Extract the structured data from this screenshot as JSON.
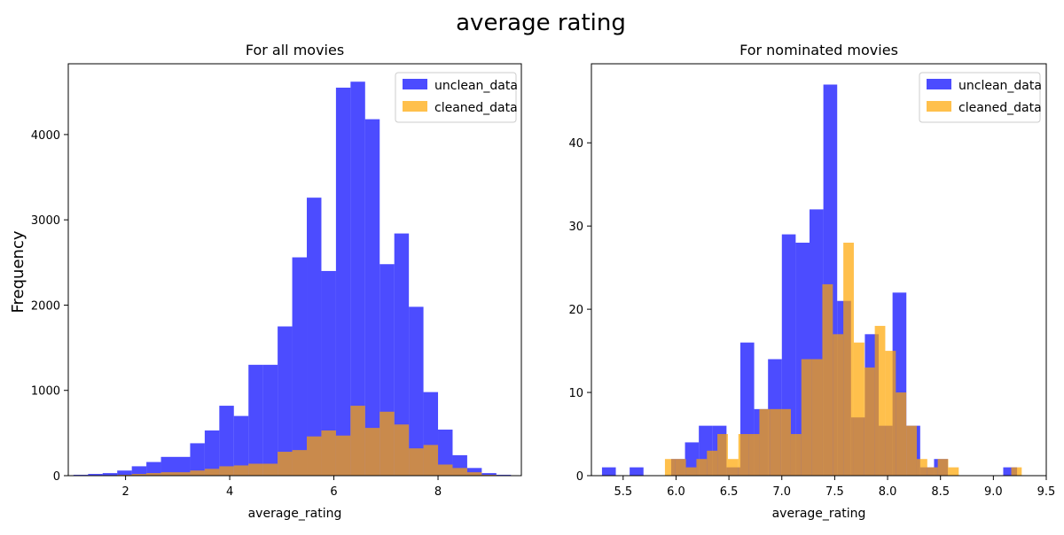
{
  "figure": {
    "suptitle": "average rating",
    "shared_ylabel": "Frequency"
  },
  "chart_data": [
    {
      "type": "histogram",
      "title": "For all movies",
      "xlabel": "average_rating",
      "ylabel": "",
      "xlim": [
        0.9,
        9.6
      ],
      "ylim": [
        0,
        4830
      ],
      "xticks": [
        2,
        4,
        6,
        8
      ],
      "yticks": [
        0,
        1000,
        2000,
        3000,
        4000
      ],
      "legend_position": "upper right",
      "grid": false,
      "series": [
        {
          "name": "unclean_data",
          "color": "#0000ff",
          "opacity": 0.7,
          "bin_edges": [
            1.0,
            1.28,
            1.56,
            1.84,
            2.12,
            2.4,
            2.68,
            2.96,
            3.24,
            3.52,
            3.8,
            4.08,
            4.36,
            4.64,
            4.92,
            5.2,
            5.48,
            5.76,
            6.04,
            6.32,
            6.6,
            6.88,
            7.16,
            7.44,
            7.72,
            8.0,
            8.28,
            8.56,
            8.84,
            9.12,
            9.4
          ],
          "counts": [
            10,
            20,
            30,
            60,
            110,
            160,
            220,
            220,
            380,
            530,
            820,
            700,
            1300,
            1300,
            1750,
            2560,
            3260,
            2400,
            4550,
            4620,
            4180,
            2480,
            2840,
            1980,
            980,
            540,
            240,
            90,
            30,
            10
          ]
        },
        {
          "name": "cleaned_data",
          "color": "#ffa500",
          "opacity": 0.7,
          "bin_edges": [
            1.0,
            1.28,
            1.56,
            1.84,
            2.12,
            2.4,
            2.68,
            2.96,
            3.24,
            3.52,
            3.8,
            4.08,
            4.36,
            4.64,
            4.92,
            5.2,
            5.48,
            5.76,
            6.04,
            6.32,
            6.6,
            6.88,
            7.16,
            7.44,
            7.72,
            8.0,
            8.28,
            8.56,
            8.84,
            9.12,
            9.4
          ],
          "counts": [
            0,
            0,
            0,
            10,
            20,
            30,
            40,
            40,
            60,
            80,
            110,
            120,
            140,
            140,
            280,
            300,
            460,
            530,
            470,
            820,
            560,
            750,
            600,
            320,
            360,
            130,
            90,
            40,
            10,
            0
          ]
        }
      ]
    },
    {
      "type": "histogram",
      "title": "For nominated movies",
      "xlabel": "average_rating",
      "ylabel": "",
      "xlim": [
        5.2,
        9.5
      ],
      "ylim": [
        0,
        49.5
      ],
      "xticks": [
        5.5,
        6.0,
        6.5,
        7.0,
        7.5,
        8.0,
        8.5,
        9.0,
        9.5
      ],
      "yticks": [
        0,
        10,
        20,
        30,
        40
      ],
      "legend_position": "upper right",
      "grid": false,
      "series": [
        {
          "name": "unclean_data",
          "color": "#0000ff",
          "opacity": 0.7,
          "bin_edges": [
            5.3,
            5.4308,
            5.5616,
            5.6924,
            5.8232,
            5.954,
            6.0848,
            6.2156,
            6.3464,
            6.4772,
            6.608,
            6.7388,
            6.8696,
            7.0004,
            7.1312,
            7.262,
            7.3928,
            7.5236,
            7.6544,
            7.7852,
            7.916,
            8.0468,
            8.1776,
            8.3084,
            8.4392,
            8.57,
            8.7008,
            8.8316,
            8.9624,
            9.0932,
            9.224
          ],
          "counts": [
            1,
            0,
            1,
            0,
            0,
            2,
            4,
            6,
            6,
            1,
            16,
            8,
            14,
            29,
            28,
            32,
            47,
            21,
            7,
            17,
            6,
            22,
            6,
            1,
            2,
            0,
            0,
            0,
            0,
            1
          ]
        },
        {
          "name": "cleaned_data",
          "color": "#ffa500",
          "opacity": 0.7,
          "bin_edges": [
            5.3,
            5.3992,
            5.4984,
            5.5976,
            5.6968,
            5.796,
            5.8952,
            5.9944,
            6.0936,
            6.1928,
            6.292,
            6.3912,
            6.4904,
            6.5896,
            6.6888,
            6.788,
            6.8872,
            6.9864,
            7.0856,
            7.1848,
            7.284,
            7.3832,
            7.4824,
            7.5816,
            7.6808,
            7.78,
            7.8792,
            7.978,
            8.0776,
            8.1768,
            8.276,
            8.3752,
            8.4744,
            8.5736,
            8.6728,
            8.772,
            8.8712,
            8.9704,
            9.0696,
            9.1688,
            9.268
          ],
          "counts": [
            0,
            0,
            0,
            0,
            0,
            0,
            2,
            2,
            1,
            2,
            3,
            5,
            2,
            5,
            5,
            8,
            8,
            8,
            5,
            14,
            14,
            23,
            17,
            28,
            16,
            13,
            18,
            15,
            10,
            6,
            2,
            1,
            2,
            1,
            0,
            0,
            0,
            0,
            0,
            1
          ]
        }
      ]
    }
  ]
}
